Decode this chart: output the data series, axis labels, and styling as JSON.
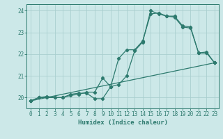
{
  "xlabel": "Humidex (Indice chaleur)",
  "bg_color": "#cce8e8",
  "grid_color": "#aacfcf",
  "line_color": "#2d7a6e",
  "xlim": [
    -0.5,
    23.5
  ],
  "ylim": [
    19.5,
    24.3
  ],
  "yticks": [
    20,
    21,
    22,
    23,
    24
  ],
  "xticks": [
    0,
    1,
    2,
    3,
    4,
    5,
    6,
    7,
    8,
    9,
    10,
    11,
    12,
    13,
    14,
    15,
    16,
    17,
    18,
    19,
    20,
    21,
    22,
    23
  ],
  "line1_x": [
    0,
    1,
    2,
    3,
    4,
    5,
    6,
    7,
    8,
    9,
    10,
    11,
    12,
    13,
    14,
    15,
    16,
    17,
    18,
    19,
    20,
    21,
    22,
    23
  ],
  "line1_y": [
    19.85,
    20.0,
    20.0,
    20.0,
    20.0,
    20.15,
    20.2,
    20.2,
    19.95,
    19.95,
    20.5,
    21.8,
    22.2,
    22.2,
    22.6,
    23.85,
    23.9,
    23.75,
    23.75,
    23.3,
    23.25,
    22.05,
    22.1,
    21.6
  ],
  "line2_x": [
    0,
    1,
    2,
    3,
    4,
    5,
    6,
    7,
    8,
    9,
    10,
    11,
    12,
    13,
    14,
    15,
    16,
    17,
    18,
    19,
    20,
    21,
    22,
    23
  ],
  "line2_y": [
    19.85,
    20.0,
    20.05,
    20.0,
    20.0,
    20.1,
    20.15,
    20.25,
    20.25,
    20.9,
    20.5,
    20.6,
    21.0,
    22.15,
    22.55,
    24.0,
    23.85,
    23.75,
    23.7,
    23.25,
    23.2,
    22.05,
    22.05,
    21.6
  ],
  "line3_x": [
    0,
    23
  ],
  "line3_y": [
    19.85,
    21.6
  ]
}
